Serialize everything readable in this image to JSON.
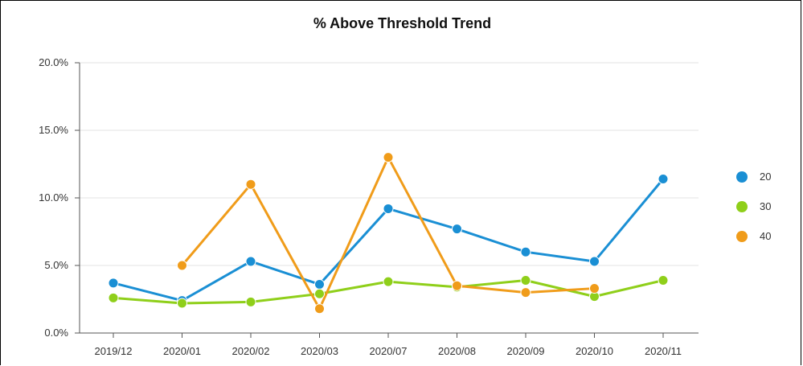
{
  "chart_data": {
    "type": "line",
    "title": "% Above Threshold Trend",
    "xlabel": "",
    "ylabel": "",
    "categories": [
      "2019/12",
      "2020/01",
      "2020/02",
      "2020/03",
      "2020/07",
      "2020/08",
      "2020/09",
      "2020/10",
      "2020/11"
    ],
    "ylim": [
      0,
      20
    ],
    "yticks": [
      "0.0%",
      "5.0%",
      "10.0%",
      "15.0%",
      "20.0%"
    ],
    "ytick_values": [
      0,
      5,
      10,
      15,
      20
    ],
    "grid": true,
    "legend_position": "right",
    "series": [
      {
        "name": "20",
        "color": "#1a8fd4",
        "values": [
          3.7,
          2.4,
          5.3,
          3.6,
          9.2,
          7.7,
          6.0,
          5.3,
          11.4
        ]
      },
      {
        "name": "30",
        "color": "#8fcf1a",
        "values": [
          2.6,
          2.2,
          2.3,
          2.9,
          3.8,
          3.4,
          3.9,
          2.7,
          3.9
        ]
      },
      {
        "name": "40",
        "color": "#f09c1a",
        "values": [
          null,
          5.0,
          11.0,
          1.8,
          13.0,
          3.5,
          3.0,
          3.3,
          null
        ]
      }
    ]
  }
}
